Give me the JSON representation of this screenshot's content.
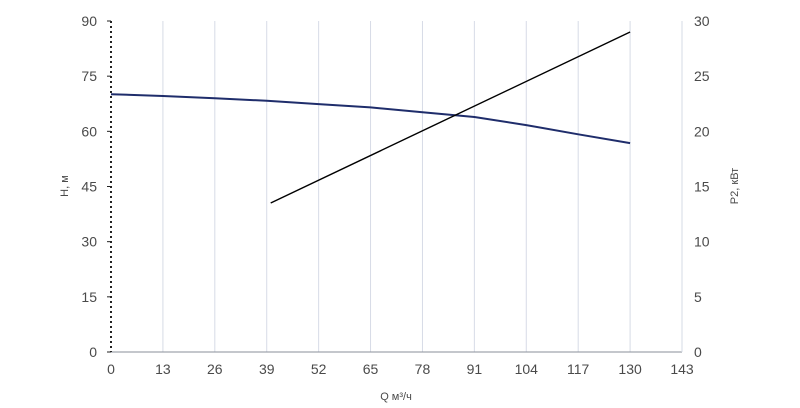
{
  "chart_data": {
    "type": "line",
    "xlabel": "Q м³/ч",
    "ylabel": "H, м",
    "y2label": "P2, кВт",
    "xlim": [
      0,
      143
    ],
    "ylim": [
      0,
      90
    ],
    "y2lim": [
      0,
      30
    ],
    "x_ticks": [
      0,
      13,
      26,
      39,
      52,
      65,
      78,
      91,
      104,
      117,
      130,
      143
    ],
    "y_ticks": [
      0,
      15,
      30,
      45,
      60,
      75,
      90
    ],
    "y2_ticks": [
      0,
      5,
      10,
      15,
      20,
      25,
      30
    ],
    "grid": "vertical",
    "colors": {
      "head": "#1f2d6b",
      "power": "#000000",
      "grid": "#d6dbe6",
      "axis": "#8a8f9a"
    },
    "series": [
      {
        "axis": "left",
        "x": [
          0,
          13,
          26,
          39,
          52,
          65,
          78,
          91,
          104,
          117,
          130
        ],
        "y": [
          70.1,
          69.6,
          69.0,
          68.3,
          67.4,
          66.5,
          65.2,
          63.9,
          61.7,
          59.2,
          56.8
        ]
      },
      {
        "axis": "right",
        "x": [
          40,
          130
        ],
        "y": [
          13.5,
          29.0
        ]
      }
    ]
  }
}
